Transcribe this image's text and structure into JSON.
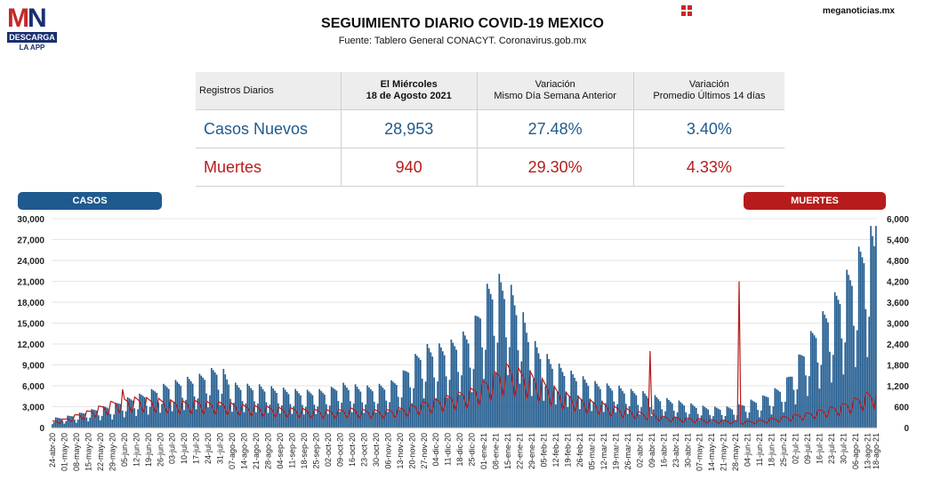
{
  "header": {
    "logo_text": "MN",
    "logo_descarga": "DESCARGA",
    "logo_app": "LA APP",
    "title": "SEGUIMIENTO DIARIO COVID-19 MEXICO",
    "source": "Fuente: Tablero General CONACYT. Coronavirus.gob.mx",
    "site": "meganoticias.mx"
  },
  "summary": {
    "col1": "Registros Diarios",
    "col2_line1": "El Miércoles",
    "col2_line2": "18 de Agosto 2021",
    "col3_line1": "Variación",
    "col3_line2": "Mismo Día Semana Anterior",
    "col4_line1": "Variación",
    "col4_line2": "Promedio Últimos 14 días",
    "rows": [
      {
        "label": "Casos Nuevos",
        "value": "28,953",
        "var_week": "27.48%",
        "var_avg": "3.40%"
      },
      {
        "label": "Muertes",
        "value": "940",
        "var_week": "29.30%",
        "var_avg": "4.33%"
      }
    ]
  },
  "legend": {
    "casos": "CASOS",
    "muertes": "MUERTES"
  },
  "colors": {
    "casos": "#1f5a8e",
    "muertes": "#b71c1c"
  },
  "chart_data": {
    "type": "bar",
    "start_date": "2020-04-24",
    "end_date": "2021-08-18",
    "y_left": {
      "name": "CASOS",
      "lim": [
        0,
        30000
      ],
      "ticks": [
        "0",
        "3,000",
        "6,000",
        "9,000",
        "12,000",
        "15,000",
        "18,000",
        "21,000",
        "24,000",
        "27,000",
        "30,000"
      ]
    },
    "y_right": {
      "name": "MUERTES",
      "lim": [
        0,
        6000
      ],
      "ticks": [
        "0",
        "600",
        "1,200",
        "1,800",
        "2,400",
        "3,000",
        "3,600",
        "4,200",
        "4,800",
        "5,400",
        "6,000"
      ]
    },
    "x_tick_labels": [
      "24-abr-20",
      "01-may-20",
      "08-may-20",
      "15-may-20",
      "22-may-20",
      "29-may-20",
      "05-jun-20",
      "12-jun-20",
      "19-jun-20",
      "26-jun-20",
      "03-jul-20",
      "10-jul-20",
      "17-jul-20",
      "24-jul-20",
      "31-jul-20",
      "07-ago-20",
      "14-ago-20",
      "21-ago-20",
      "28-ago-20",
      "04-sep-20",
      "11-sep-20",
      "18-sep-20",
      "25-sep-20",
      "02-oct-20",
      "09-oct-20",
      "16-oct-20",
      "23-oct-20",
      "30-oct-20",
      "06-nov-20",
      "13-nov-20",
      "20-nov-20",
      "27-nov-20",
      "04-dic-20",
      "11-dic-20",
      "18-dic-20",
      "25-dic-20",
      "01-ene-21",
      "08-ene-21",
      "15-ene-21",
      "22-ene-21",
      "29-ene-21",
      "05-feb-21",
      "12-feb-21",
      "19-feb-21",
      "26-feb-21",
      "05-mar-21",
      "12-mar-21",
      "19-mar-21",
      "26-mar-21",
      "02-abr-21",
      "09-abr-21",
      "16-abr-21",
      "23-abr-21",
      "30-abr-21",
      "07-may-21",
      "14-may-21",
      "21-may-21",
      "28-may-21",
      "04-jun-21",
      "11-jun-21",
      "18-jun-21",
      "25-jun-21",
      "02-jul-21",
      "09-jul-21",
      "16-jul-21",
      "23-jul-21",
      "30-jul-21",
      "06-ago-21",
      "13-ago-21",
      "18-ago-21"
    ],
    "series": [
      {
        "name": "CASOS",
        "type": "bar",
        "axis": "left",
        "weekly_peak_anchors": [
          1400,
          1600,
          2000,
          2500,
          3000,
          3300,
          4200,
          4700,
          5300,
          6100,
          6700,
          7200,
          7500,
          8300,
          9200,
          6500,
          6300,
          6300,
          6000,
          5800,
          5600,
          5400,
          5500,
          5600,
          6500,
          6300,
          6000,
          6200,
          6500,
          7500,
          10000,
          12000,
          12000,
          12300,
          13500,
          14500,
          20000,
          22300,
          21500,
          18000,
          13000,
          11000,
          9500,
          8400,
          7600,
          6800,
          6400,
          6200,
          5600,
          5400,
          4800,
          4300,
          4000,
          3600,
          3200,
          3000,
          3000,
          3100,
          3900,
          4300,
          5400,
          6300,
          9500,
          13000,
          16000,
          18500,
          21800,
          24800,
          28953
        ],
        "note_per_week_dips": "weekday pattern with low Sunday/Monday values"
      },
      {
        "name": "MUERTES",
        "type": "line",
        "axis": "right",
        "weekly_level_anchors": [
          180,
          230,
          350,
          450,
          580,
          700,
          780,
          800,
          780,
          760,
          720,
          700,
          720,
          690,
          680,
          650,
          600,
          580,
          560,
          530,
          520,
          500,
          480,
          470,
          480,
          520,
          480,
          470,
          480,
          530,
          600,
          700,
          770,
          860,
          950,
          1050,
          1250,
          1500,
          1700,
          1550,
          1450,
          1250,
          1050,
          900,
          800,
          720,
          650,
          550,
          500,
          420,
          380,
          300,
          280,
          260,
          240,
          220,
          200,
          180,
          170,
          200,
          250,
          300,
          350,
          400,
          480,
          550,
          650,
          800,
          940
        ],
        "spikes": [
          {
            "date": "2021-04-08",
            "value": 2200
          },
          {
            "date": "2021-05-30",
            "value": 4200
          },
          {
            "date": "2020-06-04",
            "value": 1100
          }
        ]
      }
    ]
  }
}
